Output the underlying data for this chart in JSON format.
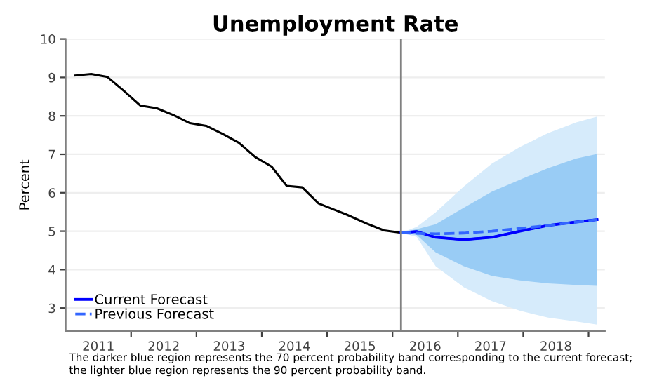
{
  "chart_data": {
    "type": "line",
    "title": "Unemployment Rate",
    "ylabel": "Percent",
    "xlim": [
      2011.0,
      2019.25
    ],
    "ylim": [
      2.4,
      10
    ],
    "xticks": [
      {
        "value": 2011.5,
        "label": "2011"
      },
      {
        "value": 2012.5,
        "label": "2012"
      },
      {
        "value": 2013.5,
        "label": "2013"
      },
      {
        "value": 2014.5,
        "label": "2014"
      },
      {
        "value": 2015.5,
        "label": "2015"
      },
      {
        "value": 2016.5,
        "label": "2016"
      },
      {
        "value": 2017.5,
        "label": "2017"
      },
      {
        "value": 2018.5,
        "label": "2018"
      },
      {
        "value": 2012,
        "label": null
      },
      {
        "value": 2013,
        "label": null
      },
      {
        "value": 2014,
        "label": null
      },
      {
        "value": 2015,
        "label": null
      },
      {
        "value": 2016,
        "label": null
      },
      {
        "value": 2017,
        "label": null
      },
      {
        "value": 2018,
        "label": null
      },
      {
        "value": 2019,
        "label": null
      }
    ],
    "yticks": [
      3,
      4,
      5,
      6,
      7,
      8,
      9,
      10
    ],
    "grid": "y",
    "legend": "bottom left",
    "line_style": "solid",
    "series": [
      {
        "type": "line",
        "color": "#000000",
        "x": [
          2011.14,
          2011.39,
          2011.64,
          2011.89,
          2012.14,
          2012.39,
          2012.65,
          2012.9,
          2013.15,
          2013.4,
          2013.65,
          2013.9,
          2014.15,
          2014.38,
          2014.62,
          2014.87,
          2015.12,
          2015.3,
          2015.59,
          2015.87,
          2016.13
        ],
        "values": [
          9.05,
          9.09,
          9.01,
          8.65,
          8.27,
          8.2,
          8.02,
          7.81,
          7.74,
          7.53,
          7.3,
          6.93,
          6.68,
          6.18,
          6.14,
          5.72,
          5.55,
          5.43,
          5.21,
          5.02,
          4.96
        ]
      },
      {
        "type": "line",
        "name": "Current Forecast",
        "color": "#0000ff",
        "x": [
          2016.13,
          2016.37,
          2016.66,
          2017.09,
          2017.52,
          2017.95,
          2018.38,
          2018.81,
          2019.13
        ],
        "values": [
          4.96,
          4.99,
          4.84,
          4.78,
          4.84,
          5.0,
          5.15,
          5.24,
          5.3
        ],
        "upper": [
          4.96,
          5.11,
          5.49,
          6.16,
          6.76,
          7.19,
          7.55,
          7.83,
          7.98
        ],
        "lower": [
          4.96,
          4.85,
          4.09,
          3.54,
          3.18,
          2.93,
          2.75,
          2.65,
          2.57
        ]
      },
      {
        "type": "line",
        "color": "#0000ff",
        "x": [
          2016.13,
          2016.37,
          2016.66,
          2017.09,
          2017.52,
          2017.95,
          2018.38,
          2018.81,
          2019.13
        ],
        "values": [
          4.96,
          4.99,
          4.84,
          4.78,
          4.84,
          5.0,
          5.15,
          5.24,
          5.3
        ],
        "upper": [
          4.96,
          5.05,
          5.18,
          5.61,
          6.03,
          6.34,
          6.64,
          6.89,
          7.01
        ],
        "lower": [
          4.96,
          4.9,
          4.45,
          4.09,
          3.84,
          3.72,
          3.64,
          3.6,
          3.58
        ]
      },
      {
        "type": "line",
        "name": "Previous Forecast",
        "color": "#3366ff",
        "line_style": "dashed",
        "x": [
          2016.13,
          2016.66,
          2017.09,
          2017.52,
          2017.95,
          2018.38,
          2019.13
        ],
        "values": [
          4.96,
          4.93,
          4.95,
          5.0,
          5.07,
          5.15,
          5.3
        ]
      }
    ],
    "ref_lines": [
      {
        "axis": "x",
        "value": 2016.13,
        "color": "#808080"
      }
    ],
    "annotations": [
      "The darker blue region represents the 70 percent probability band corresponding to the current forecast;\nthe lighter blue region represents the 90 percent probability band."
    ]
  }
}
